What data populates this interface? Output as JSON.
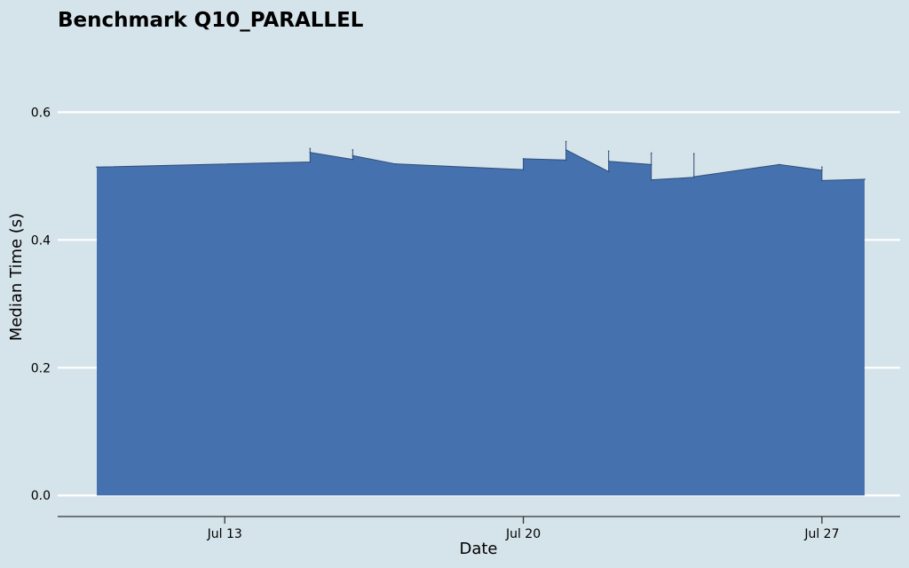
{
  "chart_data": {
    "type": "area",
    "title": "Benchmark Q10_PARALLEL",
    "xlabel": "Date",
    "ylabel": "Median Time (s)",
    "x_ticks": [
      "Jul 13",
      "Jul 20",
      "Jul 27"
    ],
    "x_tick_dates": [
      "2024-07-13",
      "2024-07-20",
      "2024-07-27"
    ],
    "y_ticks": [
      "0.0",
      "0.2",
      "0.4",
      "0.6"
    ],
    "y_tick_values": [
      0.0,
      0.2,
      0.4,
      0.6
    ],
    "xlim": [
      "2024-07-09T02:00",
      "2024-07-28T20:00"
    ],
    "ylim": [
      -0.033,
      0.72
    ],
    "grid": "horizontal",
    "colors": {
      "background": "#d5e3ea",
      "fill": "#4571ae",
      "edge": "#2e4e7a",
      "grid": "#ffffff",
      "axis": "#333333"
    },
    "series": [
      {
        "values": [
          [
            "2024-07-10T00:00",
            0.514
          ],
          [
            "2024-07-15T00:00",
            0.522
          ],
          [
            "2024-07-15T00:00",
            0.543
          ],
          [
            "2024-07-15T00:00",
            0.537
          ],
          [
            "2024-07-16T00:00",
            0.526
          ],
          [
            "2024-07-16T00:00",
            0.541
          ],
          [
            "2024-07-16T00:00",
            0.532
          ],
          [
            "2024-07-17T00:00",
            0.519
          ],
          [
            "2024-07-20T00:00",
            0.51
          ],
          [
            "2024-07-20T00:00",
            0.527
          ],
          [
            "2024-07-21T00:00",
            0.525
          ],
          [
            "2024-07-21T00:00",
            0.554
          ],
          [
            "2024-07-21T00:00",
            0.541
          ],
          [
            "2024-07-22T00:00",
            0.507
          ],
          [
            "2024-07-22T00:00",
            0.539
          ],
          [
            "2024-07-22T00:00",
            0.523
          ],
          [
            "2024-07-23T00:00",
            0.518
          ],
          [
            "2024-07-23T00:00",
            0.536
          ],
          [
            "2024-07-23T00:00",
            0.494
          ],
          [
            "2024-07-24T00:00",
            0.498
          ],
          [
            "2024-07-24T00:00",
            0.535
          ],
          [
            "2024-07-24T00:00",
            0.499
          ],
          [
            "2024-07-26T00:00",
            0.518
          ],
          [
            "2024-07-27T00:00",
            0.509
          ],
          [
            "2024-07-27T00:00",
            0.514
          ],
          [
            "2024-07-27T00:00",
            0.493
          ],
          [
            "2024-07-28T00:00",
            0.495
          ]
        ]
      }
    ]
  }
}
